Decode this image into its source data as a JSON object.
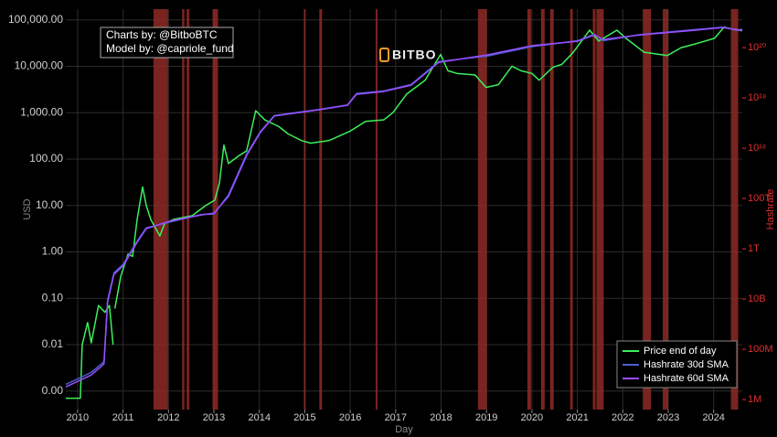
{
  "chart_data": {
    "type": "line",
    "annotation": [
      "Charts by: @BitboBTC",
      "Model by: @capriole_fund"
    ],
    "watermark": "BITBO",
    "y_label": "USD",
    "y2_label": "Hashrate",
    "x_label": "Day",
    "log_scale": true,
    "grid": true,
    "legend": "lower right",
    "xlim": [
      2009.74,
      2024.63
    ],
    "xticks": [
      2010,
      2011,
      2012,
      2013,
      2014,
      2015,
      2016,
      2017,
      2018,
      2019,
      2020,
      2021,
      2022,
      2023,
      2024
    ],
    "ylim": [
      0.0004,
      170000
    ],
    "yticks": [
      {
        "value": 0.001,
        "label": "0.00"
      },
      {
        "value": 0.01,
        "label": "0.01"
      },
      {
        "value": 0.1,
        "label": "0.10"
      },
      {
        "value": 1,
        "label": "1.00"
      },
      {
        "value": 10,
        "label": "10.00"
      },
      {
        "value": 100,
        "label": "100.00"
      },
      {
        "value": 1000,
        "label": "1,000.00"
      },
      {
        "value": 10000,
        "label": "10,000.00"
      },
      {
        "value": 100000,
        "label": "100,000.00"
      }
    ],
    "y2lim": [
      400000,
      3.4e+21
    ],
    "y2ticks": [
      {
        "value": 1000000,
        "label": "1M"
      },
      {
        "value": 100000000,
        "label": "100M"
      },
      {
        "value": 10000000000,
        "label": "10B"
      },
      {
        "value": 1000000000000,
        "label": "1T"
      },
      {
        "value": 100000000000000,
        "label": "100T"
      },
      {
        "value": 1e+16,
        "label": "10¹⁶"
      },
      {
        "value": 1e+18,
        "label": "10¹⁸"
      },
      {
        "value": 1e+20,
        "label": "10²⁰"
      }
    ],
    "region_color": "#8e2a26",
    "regions": [
      [
        2011.67,
        2011.99
      ],
      [
        2012.3,
        2012.35
      ],
      [
        2012.4,
        2012.46
      ],
      [
        2012.97,
        2013.09
      ],
      [
        2014.98,
        2015.02
      ],
      [
        2015.32,
        2015.38
      ],
      [
        2016.56,
        2016.6
      ],
      [
        2018.81,
        2019.01
      ],
      [
        2019.9,
        2019.98
      ],
      [
        2020.2,
        2020.28
      ],
      [
        2020.4,
        2020.48
      ],
      [
        2020.84,
        2020.9
      ],
      [
        2021.34,
        2021.4
      ],
      [
        2021.42,
        2021.58
      ],
      [
        2022.44,
        2022.62
      ],
      [
        2022.88,
        2023.0
      ],
      [
        2024.38,
        2024.54
      ]
    ],
    "series": [
      {
        "name": "Price end of day",
        "color": "#3cf05a",
        "axis": "y",
        "x": [
          2009.74,
          2010.06,
          2010.1,
          2010.22,
          2010.3,
          2010.46,
          2010.6,
          2010.7,
          2010.78,
          2010.8,
          2010.82,
          2010.95,
          2011.11,
          2011.21,
          2011.31,
          2011.43,
          2011.51,
          2011.61,
          2011.81,
          2011.91,
          2012.11,
          2012.52,
          2012.82,
          2013.02,
          2013.12,
          2013.22,
          2013.32,
          2013.56,
          2013.72,
          2013.92,
          2014.12,
          2014.43,
          2014.63,
          2014.93,
          2015.13,
          2015.53,
          2016.0,
          2016.34,
          2016.74,
          2016.94,
          2017.24,
          2017.65,
          2017.99,
          2018.15,
          2018.35,
          2018.75,
          2018.99,
          2019.26,
          2019.56,
          2019.76,
          2020.0,
          2020.16,
          2020.46,
          2020.66,
          2020.91,
          2021.27,
          2021.47,
          2021.87,
          2022.07,
          2022.47,
          2022.98,
          2023.28,
          2023.58,
          2024.02,
          2024.23,
          2024.49,
          2024.63
        ],
        "values": [
          0.0007,
          0.0007,
          0.01,
          0.03,
          0.011,
          0.07,
          0.05,
          0.07,
          0.01,
          null,
          0.06,
          0.3,
          0.9,
          0.8,
          5,
          25,
          10,
          5,
          2.2,
          4,
          5,
          6,
          10,
          13,
          30,
          200,
          80,
          120,
          150,
          1100,
          700,
          500,
          350,
          250,
          220,
          250,
          400,
          650,
          700,
          1000,
          2500,
          5000,
          18000,
          8000,
          7000,
          6500,
          3500,
          4000,
          10000,
          8000,
          7000,
          5000,
          9500,
          11000,
          20000,
          60000,
          35000,
          60000,
          40000,
          20000,
          17000,
          25000,
          30000,
          40000,
          70000,
          60000,
          62000
        ]
      },
      {
        "name": "Hashrate 30d SMA",
        "color": "#4a5fd0",
        "axis": "y2",
        "x": [
          2009.74,
          2010.3,
          2010.58,
          2010.66,
          2010.8,
          2011.01,
          2011.31,
          2011.51,
          2011.99,
          2012.72,
          2013.0,
          2013.32,
          2013.72,
          2014.02,
          2014.33,
          2015.33,
          2015.94,
          2016.14,
          2016.74,
          2017.34,
          2017.95,
          2019.01,
          2020.0,
          2021.01,
          2021.37,
          2021.57,
          2022.37,
          2023.58,
          2024.19,
          2024.63
        ],
        "values": [
          4000000.0,
          12000000.0,
          32000000.0,
          9000000000.0,
          110000000000.0,
          250000000000.0,
          2000000000000.0,
          6800000000000.0,
          11000000000000.0,
          23000000000000.0,
          24000000000000.0,
          140000000000000.0,
          5800000000000000.0,
          4.5e+16,
          2e+17,
          3.5e+17,
          5.3e+17,
          1.5e+18,
          1.9e+18,
          3.4e+18,
          2.8e+19,
          4.6e+19,
          1.1e+20,
          1.9e+20,
          3.4e+20,
          1.9e+20,
          3.3e+20,
          5.2e+20,
          6.5e+20,
          4.6e+20
        ]
      },
      {
        "name": "Hashrate 60d SMA",
        "color": "#9b4dff",
        "axis": "y2",
        "x": [
          2009.74,
          2010.3,
          2010.58,
          2010.66,
          2010.8,
          2011.01,
          2011.31,
          2011.51,
          2011.99,
          2012.72,
          2013.0,
          2013.32,
          2013.72,
          2014.02,
          2014.33,
          2015.33,
          2015.94,
          2016.14,
          2016.74,
          2017.34,
          2017.95,
          2019.01,
          2020.0,
          2021.01,
          2021.37,
          2021.57,
          2022.37,
          2023.58,
          2024.19,
          2024.63
        ],
        "values": [
          3200000.0,
          9500000.0,
          26000000.0,
          7800000000.0,
          95000000000.0,
          220000000000.0,
          1800000000000.0,
          6300000000000.0,
          12000000000000.0,
          22000000000000.0,
          26000000000000.0,
          120000000000000.0,
          5100000000000000.0,
          4.2e+16,
          1.9e+17,
          3.4e+17,
          5.1e+17,
          1.4e+18,
          1.8e+18,
          3.2e+18,
          2.6e+19,
          5.1e+19,
          1.2e+20,
          1.8e+20,
          3.2e+20,
          2.1e+20,
          3.2e+20,
          4.9e+20,
          6.3e+20,
          4.9e+20
        ]
      }
    ]
  }
}
